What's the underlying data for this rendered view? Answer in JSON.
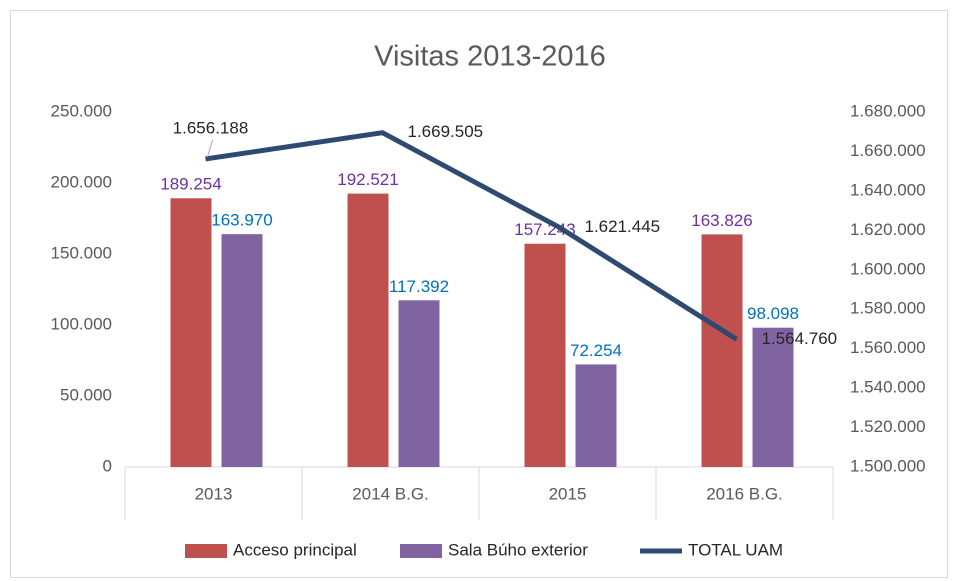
{
  "chart_data": {
    "type": "bar-line",
    "title": "Visitas 2013-2016",
    "categories": [
      "2013",
      "2014 B.G.",
      "2015",
      "2016 B.G."
    ],
    "series": [
      {
        "name": "Acceso principal",
        "type": "bar",
        "color": "#c0504d",
        "label_color": "#7030a0",
        "values": [
          189254,
          192521,
          157243,
          163826
        ],
        "value_labels": [
          "189.254",
          "192.521",
          "157.243",
          "163.826"
        ]
      },
      {
        "name": "Sala Búho  exterior",
        "type": "bar",
        "color": "#8064a2",
        "label_color": "#0070c0",
        "values": [
          163970,
          117392,
          72254,
          98098
        ],
        "value_labels": [
          "163.970",
          "117.392",
          "72.254",
          "98.098"
        ]
      },
      {
        "name": "TOTAL UAM",
        "type": "line",
        "axis": "y2",
        "color": "#2e4a70",
        "label_color": "#262626",
        "values": [
          1656188,
          1669505,
          1621445,
          1564760
        ],
        "value_labels": [
          "1.656.188",
          "1.669.505",
          "1.621.445",
          "1.564.760"
        ]
      }
    ],
    "ylim": [
      0,
      250000
    ],
    "yticks": [
      0,
      {
        "value": 50000,
        "label": "50.000"
      },
      {
        "value": 100000,
        "label": "100.000"
      },
      {
        "value": 150000,
        "label": "150.000"
      },
      {
        "value": 200000,
        "label": "200.000"
      },
      {
        "value": 250000,
        "label": "250.000"
      }
    ],
    "y2lim": [
      1500000,
      1680000
    ],
    "y2ticks": [
      {
        "value": 1500000,
        "label": "1.500.000"
      },
      {
        "value": 1520000,
        "label": "1.520.000"
      },
      {
        "value": 1540000,
        "label": "1.540.000"
      },
      {
        "value": 1560000,
        "label": "1.560.000"
      },
      {
        "value": 1580000,
        "label": "1.580.000"
      },
      {
        "value": 1600000,
        "label": "1.600.000"
      },
      {
        "value": 1620000,
        "label": "1.620.000"
      },
      {
        "value": 1640000,
        "label": "1.640.000"
      },
      {
        "value": 1660000,
        "label": "1.660.000"
      },
      {
        "value": 1680000,
        "label": "1.680.000"
      }
    ],
    "grid": false,
    "legend": "bottom"
  }
}
